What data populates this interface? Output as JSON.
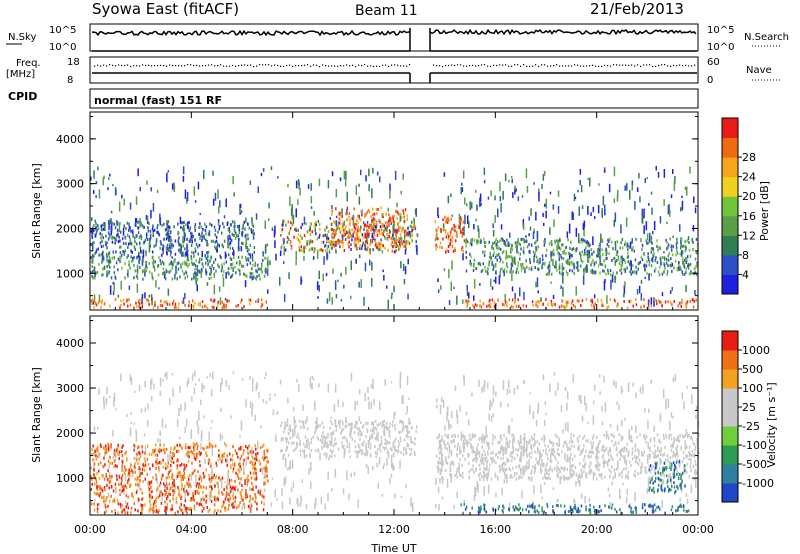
{
  "header": {
    "title": "Syowa East (fitACF)",
    "beam": "Beam 11",
    "date": "21/Feb/2013"
  },
  "status_panels": {
    "nsky_label": "N.Sky",
    "nsearch_label": "N.Search",
    "freq_label_line1": "Freq.",
    "freq_label_line2": "[MHz]",
    "nave_label": "Nave",
    "cpid_label": "CPID",
    "cpid_text": "normal (fast) 151 RF",
    "noise_ticks": [
      "10^5",
      "10^0"
    ],
    "freq_ticks": [
      "18",
      "8"
    ],
    "nave_ticks": [
      "60",
      "0"
    ]
  },
  "chart_data": [
    {
      "type": "heatmap",
      "quantity": "Power",
      "ylabel": "Slant Range [km]",
      "xlabel": "",
      "ylim": [
        180,
        4600
      ],
      "xlim": [
        0,
        24
      ],
      "yticks": [
        "1000",
        "2000",
        "3000",
        "4000"
      ],
      "colorbar": {
        "label": "Power [dB]",
        "ticks": [
          "4",
          "8",
          "12",
          "16",
          "20",
          "24",
          "28"
        ],
        "colors": [
          "#1f1fe0",
          "#2e4fc7",
          "#2f7f55",
          "#5a9e4a",
          "#72c43a",
          "#f0d020",
          "#f7a51a",
          "#f06a14",
          "#e81e16"
        ]
      },
      "data_gaps_hours": [
        [
          12.9,
          13.6
        ]
      ],
      "regions": [
        {
          "t": [
            0.0,
            7.0
          ],
          "r": [
            250,
            450
          ],
          "level": "high"
        },
        {
          "t": [
            0.0,
            7.0
          ],
          "r": [
            900,
            1400
          ],
          "level": "mid"
        },
        {
          "t": [
            0.0,
            6.5
          ],
          "r": [
            1400,
            2200
          ],
          "level": "low"
        },
        {
          "t": [
            7.5,
            12.9
          ],
          "r": [
            1500,
            2200
          ],
          "level": "mixed"
        },
        {
          "t": [
            9.5,
            12.5
          ],
          "r": [
            1600,
            2500
          ],
          "level": "high"
        },
        {
          "t": [
            13.6,
            14.8
          ],
          "r": [
            1500,
            2300
          ],
          "level": "high"
        },
        {
          "t": [
            14.8,
            24.0
          ],
          "r": [
            1000,
            1800
          ],
          "level": "mid"
        },
        {
          "t": [
            14.8,
            24.0
          ],
          "r": [
            250,
            450
          ],
          "level": "high"
        }
      ]
    },
    {
      "type": "heatmap",
      "quantity": "Velocity",
      "ylabel": "Slant Range [km]",
      "xlabel": "Time UT",
      "ylim": [
        180,
        4600
      ],
      "xlim": [
        0,
        24
      ],
      "yticks": [
        "1000",
        "2000",
        "3000",
        "4000"
      ],
      "xticks": [
        "00:00",
        "04:00",
        "08:00",
        "12:00",
        "16:00",
        "20:00",
        "00:00"
      ],
      "colorbar": {
        "label": "Velocity [m s⁻¹]",
        "ticks": [
          "1000",
          "500",
          "100",
          "25",
          "-25",
          "-100",
          "-500",
          "-1000"
        ],
        "colors": [
          "#1e46c8",
          "#2f7f9e",
          "#2e9c55",
          "#6fcf3a",
          "#c8c8c8",
          "#c8c8c8",
          "#f5a020",
          "#f07018",
          "#e81e16"
        ]
      },
      "data_gaps_hours": [
        [
          12.9,
          13.6
        ]
      ],
      "regions": [
        {
          "t": [
            0.0,
            7.0
          ],
          "r": [
            250,
            1800
          ],
          "level": "negative"
        },
        {
          "t": [
            7.5,
            12.9
          ],
          "r": [
            1500,
            2300
          ],
          "level": "near-zero"
        },
        {
          "t": [
            13.6,
            24.0
          ],
          "r": [
            1000,
            2000
          ],
          "level": "near-zero"
        },
        {
          "t": [
            14.5,
            24.0
          ],
          "r": [
            250,
            450
          ],
          "level": "positive"
        },
        {
          "t": [
            22.0,
            23.5
          ],
          "r": [
            700,
            1400
          ],
          "level": "positive"
        }
      ]
    }
  ],
  "colors": {
    "frame": "#000000",
    "background": "#ffffff"
  }
}
